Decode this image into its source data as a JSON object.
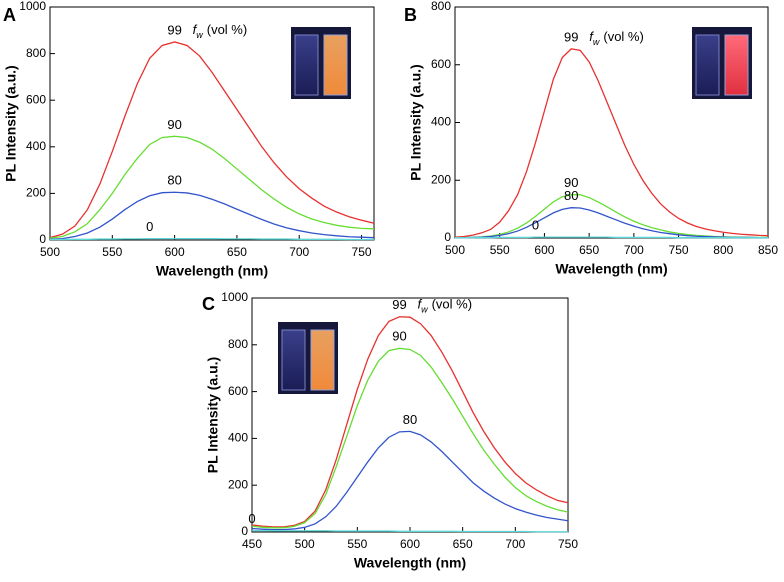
{
  "chart_data": [
    {
      "type": "line",
      "label": "A",
      "x_label": "Wavelength (nm)",
      "y_label": "PL Intensity (a.u.)",
      "annotation": [
        "f",
        "w",
        "(vol %)"
      ],
      "x": [
        500,
        510,
        520,
        530,
        540,
        550,
        560,
        570,
        580,
        590,
        600,
        610,
        620,
        630,
        640,
        650,
        660,
        670,
        680,
        690,
        700,
        710,
        720,
        730,
        740,
        750,
        760
      ],
      "xlim": [
        500,
        760
      ],
      "xticks": [
        500,
        550,
        600,
        650,
        700,
        750
      ],
      "ylim": [
        0,
        1000
      ],
      "yticks": [
        0,
        200,
        400,
        600,
        800,
        1000
      ],
      "series": [
        {
          "name": "99",
          "color": "#e8312f",
          "values": [
            10,
            25,
            60,
            130,
            240,
            380,
            530,
            670,
            780,
            835,
            850,
            835,
            790,
            720,
            640,
            560,
            480,
            400,
            330,
            270,
            220,
            180,
            145,
            120,
            100,
            85,
            72
          ]
        },
        {
          "name": "90",
          "color": "#66dd33",
          "values": [
            8,
            15,
            35,
            70,
            130,
            200,
            280,
            350,
            410,
            440,
            445,
            440,
            420,
            390,
            350,
            305,
            260,
            215,
            175,
            140,
            112,
            90,
            75,
            63,
            55,
            50,
            48
          ]
        },
        {
          "name": "80",
          "color": "#3355cc",
          "values": [
            3,
            6,
            15,
            30,
            55,
            90,
            130,
            165,
            190,
            203,
            205,
            202,
            192,
            175,
            155,
            132,
            110,
            88,
            68,
            52,
            40,
            30,
            23,
            18,
            14,
            12,
            10
          ]
        },
        {
          "name": "0",
          "color": "#5cd6d6",
          "values": [
            2,
            2,
            3,
            3,
            4,
            4,
            5,
            5,
            6,
            6,
            6,
            6,
            6,
            6,
            5,
            5,
            5,
            4,
            4,
            4,
            3,
            3,
            3,
            3,
            2,
            2,
            2
          ]
        }
      ]
    },
    {
      "type": "line",
      "label": "B",
      "x_label": "Wavelength (nm)",
      "y_label": "PL Intensity (a.u.)",
      "annotation": [
        "f",
        "w",
        "(vol %)"
      ],
      "x": [
        500,
        510,
        520,
        530,
        540,
        550,
        560,
        570,
        580,
        590,
        600,
        610,
        620,
        630,
        640,
        650,
        660,
        670,
        680,
        690,
        700,
        710,
        720,
        730,
        740,
        750,
        760,
        770,
        780,
        790,
        800,
        810,
        820,
        830,
        840,
        850
      ],
      "xlim": [
        500,
        850
      ],
      "xticks": [
        500,
        550,
        600,
        650,
        700,
        750,
        800,
        850
      ],
      "ylim": [
        0,
        800
      ],
      "yticks": [
        0,
        200,
        400,
        600,
        800
      ],
      "series": [
        {
          "name": "99",
          "color": "#e8312f",
          "values": [
            3,
            5,
            10,
            18,
            30,
            55,
            95,
            150,
            230,
            330,
            440,
            550,
            625,
            655,
            650,
            610,
            545,
            470,
            395,
            320,
            255,
            200,
            155,
            118,
            90,
            68,
            52,
            40,
            31,
            25,
            20,
            16,
            13,
            11,
            9,
            8
          ]
        },
        {
          "name": "90",
          "color": "#66dd33",
          "values": [
            1,
            1,
            2,
            4,
            7,
            12,
            21,
            34,
            52,
            75,
            100,
            125,
            143,
            150,
            150,
            140,
            125,
            108,
            90,
            73,
            58,
            46,
            36,
            28,
            21,
            16,
            12,
            9,
            7,
            5,
            4,
            3,
            3,
            2,
            2,
            2
          ]
        },
        {
          "name": "80",
          "color": "#3355cc",
          "values": [
            1,
            1,
            2,
            3,
            5,
            9,
            15,
            24,
            37,
            53,
            70,
            87,
            99,
            105,
            104,
            97,
            87,
            75,
            63,
            51,
            41,
            32,
            25,
            19,
            15,
            11,
            8,
            6,
            5,
            4,
            3,
            2,
            2,
            2,
            1,
            1
          ]
        },
        {
          "name": "0",
          "color": "#5cd6d6",
          "values": [
            1,
            1,
            1,
            1,
            1,
            2,
            2,
            2,
            2,
            3,
            3,
            3,
            3,
            3,
            3,
            3,
            3,
            3,
            2,
            2,
            2,
            2,
            2,
            2,
            2,
            1,
            1,
            1,
            1,
            1,
            1,
            1,
            1,
            1,
            1,
            1
          ]
        }
      ]
    },
    {
      "type": "line",
      "label": "C",
      "x_label": "Wavelength (nm)",
      "y_label": "PL Intensity (a.u.)",
      "annotation": [
        "f",
        "w",
        "(vol %)"
      ],
      "x": [
        450,
        460,
        470,
        480,
        490,
        500,
        510,
        520,
        530,
        540,
        550,
        560,
        570,
        580,
        590,
        600,
        610,
        620,
        630,
        640,
        650,
        660,
        670,
        680,
        690,
        700,
        710,
        720,
        730,
        740,
        750
      ],
      "xlim": [
        450,
        750
      ],
      "xticks": [
        450,
        500,
        550,
        600,
        650,
        700,
        750
      ],
      "ylim": [
        0,
        1000
      ],
      "yticks": [
        0,
        200,
        400,
        600,
        800,
        1000
      ],
      "series": [
        {
          "name": "99",
          "color": "#e8312f",
          "values": [
            30,
            25,
            22,
            22,
            28,
            45,
            90,
            180,
            310,
            460,
            610,
            740,
            840,
            900,
            920,
            918,
            890,
            840,
            770,
            690,
            600,
            510,
            430,
            360,
            300,
            250,
            210,
            180,
            155,
            135,
            125
          ]
        },
        {
          "name": "90",
          "color": "#66dd33",
          "values": [
            25,
            20,
            18,
            18,
            24,
            40,
            80,
            160,
            280,
            410,
            540,
            650,
            730,
            775,
            785,
            780,
            755,
            705,
            640,
            570,
            495,
            420,
            350,
            290,
            235,
            190,
            155,
            130,
            110,
            95,
            85
          ]
        },
        {
          "name": "80",
          "color": "#3355cc",
          "values": [
            15,
            12,
            10,
            10,
            13,
            20,
            35,
            65,
            110,
            170,
            235,
            300,
            360,
            405,
            428,
            430,
            415,
            385,
            345,
            300,
            255,
            210,
            175,
            145,
            120,
            100,
            85,
            72,
            62,
            55,
            48
          ]
        },
        {
          "name": "0",
          "color": "#5cd6d6",
          "values": [
            6,
            6,
            5,
            5,
            5,
            5,
            5,
            5,
            4,
            4,
            4,
            4,
            4,
            4,
            3,
            3,
            3,
            3,
            3,
            3,
            2,
            2,
            2,
            2,
            2,
            2,
            2,
            1,
            1,
            1,
            1
          ]
        }
      ]
    }
  ]
}
